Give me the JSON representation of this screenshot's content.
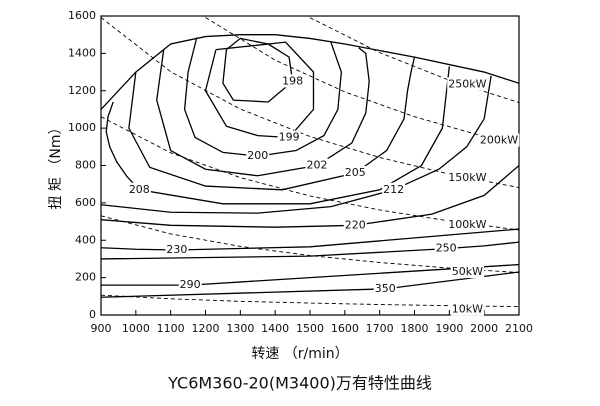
{
  "chart_data": {
    "type": "contour",
    "title": "YC6M360-20(M3400)万有特性曲线",
    "x_label": "转速 （r/min）",
    "y_label": "扭 矩 （Nm）",
    "xlim": [
      900,
      2100
    ],
    "ylim": [
      0,
      1600
    ],
    "xticks": [
      900,
      1000,
      1100,
      1200,
      1300,
      1400,
      1500,
      1600,
      1700,
      1800,
      1900,
      2000,
      2100
    ],
    "yticks": [
      0,
      200,
      400,
      600,
      800,
      1000,
      1200,
      1400,
      1600
    ],
    "color": "#000000",
    "boundary": {
      "x": [
        900,
        1000,
        1100,
        1200,
        1300,
        1400,
        1500,
        1600,
        1800,
        2000,
        2100
      ],
      "y": [
        1100,
        1300,
        1450,
        1490,
        1500,
        1500,
        1480,
        1450,
        1380,
        1300,
        1240
      ]
    },
    "contours": [
      {
        "level": 198,
        "x": [
          1260,
          1250,
          1280,
          1380,
          1450,
          1440,
          1380,
          1300,
          1260
        ],
        "y": [
          1420,
          1240,
          1150,
          1140,
          1250,
          1380,
          1450,
          1480,
          1420
        ]
      },
      {
        "level": 199,
        "x": [
          1230,
          1200,
          1260,
          1350,
          1440,
          1510,
          1510,
          1430,
          1230
        ],
        "y": [
          1420,
          1200,
          1010,
          960,
          950,
          1100,
          1300,
          1460,
          1420
        ]
      },
      {
        "level": 200,
        "x": [
          1175,
          1150,
          1140,
          1170,
          1250,
          1350,
          1460,
          1540,
          1580,
          1590,
          1560
        ],
        "y": [
          1485,
          1300,
          1100,
          950,
          870,
          850,
          880,
          960,
          1100,
          1300,
          1460
        ]
      },
      {
        "level": 202,
        "x": [
          1080,
          1060,
          1100,
          1200,
          1350,
          1520,
          1620,
          1660,
          1670,
          1660,
          1640
        ],
        "y": [
          1420,
          1150,
          880,
          780,
          745,
          800,
          920,
          1080,
          1250,
          1400,
          1430
        ]
      },
      {
        "level": 205,
        "x": [
          1000,
          980,
          1040,
          1200,
          1420,
          1630,
          1720,
          1770,
          1780,
          1790,
          1800
        ],
        "y": [
          1300,
          1000,
          790,
          690,
          670,
          760,
          880,
          1050,
          1200,
          1300,
          1380
        ]
      },
      {
        "level": 208,
        "x": [
          935,
          920,
          915,
          925,
          945,
          975,
          1010,
          1250,
          1500,
          1700,
          1820,
          1880,
          1900
        ],
        "y": [
          1140,
          1060,
          980,
          900,
          820,
          740,
          670,
          595,
          595,
          670,
          800,
          1000,
          1330
        ]
      },
      {
        "level": 212,
        "x": [
          900,
          1100,
          1350,
          1560,
          1740,
          1870,
          1950,
          2000,
          2020
        ],
        "y": [
          590,
          550,
          545,
          580,
          670,
          780,
          900,
          1050,
          1280
        ]
      },
      {
        "level": 220,
        "x": [
          900,
          1100,
          1400,
          1630,
          1850,
          2000,
          2100
        ],
        "y": [
          510,
          480,
          470,
          480,
          540,
          640,
          800
        ]
      },
      {
        "level": 230,
        "x": [
          900,
          1000,
          1118,
          1500,
          2100
        ],
        "y": [
          360,
          352,
          348,
          365,
          460
        ]
      },
      {
        "level": 250,
        "x": [
          900,
          1500,
          1891,
          2000,
          2100
        ],
        "y": [
          300,
          315,
          355,
          370,
          390
        ]
      },
      {
        "level": 290,
        "x": [
          900,
          1156,
          2100
        ],
        "y": [
          160,
          160,
          270
        ]
      },
      {
        "level": 350,
        "x": [
          900,
          1716,
          2100
        ],
        "y": [
          95,
          140,
          230
        ]
      }
    ],
    "power_lines": [
      {
        "name": "250kW",
        "x": [
          1500,
          1700,
          1900,
          2100
        ],
        "y": [
          1591,
          1404,
          1256,
          1137
        ]
      },
      {
        "name": "200kW",
        "x": [
          1200,
          1400,
          1600,
          1800,
          2000,
          2100
        ],
        "y": [
          1592,
          1364,
          1194,
          1061,
          955,
          909
        ]
      },
      {
        "name": "150kW",
        "x": [
          900,
          1100,
          1300,
          1500,
          1700,
          1900,
          2100
        ],
        "y": [
          1592,
          1302,
          1102,
          955,
          843,
          754,
          682
        ]
      },
      {
        "name": "100kW",
        "x": [
          900,
          1100,
          1300,
          1500,
          1700,
          1900,
          2100
        ],
        "y": [
          1061,
          868,
          735,
          637,
          562,
          503,
          455
        ]
      },
      {
        "name": "50kW",
        "x": [
          900,
          1100,
          1300,
          1500,
          1700,
          1900,
          2100
        ],
        "y": [
          531,
          434,
          367,
          318,
          281,
          251,
          227
        ]
      },
      {
        "name": "10kW",
        "x": [
          900,
          1100,
          1300,
          1500,
          1700,
          1900,
          2100
        ],
        "y": [
          106,
          87,
          73,
          64,
          56,
          50,
          45
        ]
      }
    ]
  }
}
